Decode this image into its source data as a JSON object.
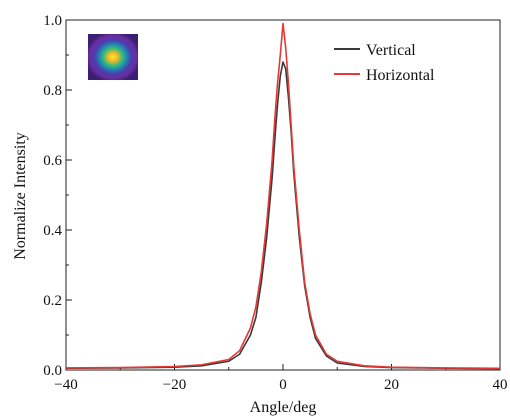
{
  "chart_data": {
    "type": "line",
    "xlabel": "Angle/deg",
    "ylabel": "Normalize Intensity",
    "xlim": [
      -40,
      40
    ],
    "ylim": [
      0.0,
      1.0
    ],
    "x_ticks": [
      -40,
      -20,
      0,
      20,
      40
    ],
    "x_tick_labels": [
      "−40",
      "−20",
      "0",
      "20",
      "40"
    ],
    "y_ticks": [
      0.0,
      0.2,
      0.4,
      0.6,
      0.8,
      1.0
    ],
    "y_tick_labels": [
      "0.0",
      "0.2",
      "0.4",
      "0.6",
      "0.8",
      "1.0"
    ],
    "grid": false,
    "legend": {
      "position": "top-right",
      "entries": [
        "Vertical",
        "Horizontal"
      ]
    },
    "inset": {
      "position": "top-left",
      "description": "beam spot image"
    },
    "series": [
      {
        "name": "Vertical",
        "color": "#3a3a3a",
        "x": [
          -40,
          -30,
          -20,
          -15,
          -10,
          -8,
          -6,
          -5,
          -4,
          -3,
          -2,
          -1.5,
          -1,
          -0.5,
          0,
          0.5,
          1,
          1.5,
          2,
          3,
          4,
          5,
          6,
          8,
          10,
          15,
          20,
          30,
          40
        ],
        "y": [
          0.005,
          0.006,
          0.008,
          0.012,
          0.025,
          0.045,
          0.1,
          0.15,
          0.25,
          0.38,
          0.55,
          0.66,
          0.76,
          0.84,
          0.88,
          0.86,
          0.78,
          0.68,
          0.56,
          0.38,
          0.24,
          0.15,
          0.09,
          0.04,
          0.02,
          0.01,
          0.007,
          0.005,
          0.004
        ]
      },
      {
        "name": "Horizontal",
        "color": "#e53935",
        "x": [
          -40,
          -30,
          -20,
          -15,
          -10,
          -8,
          -6,
          -5,
          -4,
          -3,
          -2,
          -1.5,
          -1,
          -0.5,
          0,
          0.5,
          1,
          1.5,
          2,
          3,
          4,
          5,
          6,
          8,
          10,
          15,
          20,
          30,
          40
        ],
        "y": [
          0.006,
          0.007,
          0.01,
          0.015,
          0.03,
          0.055,
          0.12,
          0.18,
          0.28,
          0.42,
          0.6,
          0.72,
          0.82,
          0.9,
          0.99,
          0.92,
          0.82,
          0.7,
          0.58,
          0.4,
          0.25,
          0.16,
          0.1,
          0.045,
          0.025,
          0.012,
          0.008,
          0.006,
          0.005
        ]
      }
    ]
  },
  "icons": {
    "inset": "beam-spot-image"
  }
}
